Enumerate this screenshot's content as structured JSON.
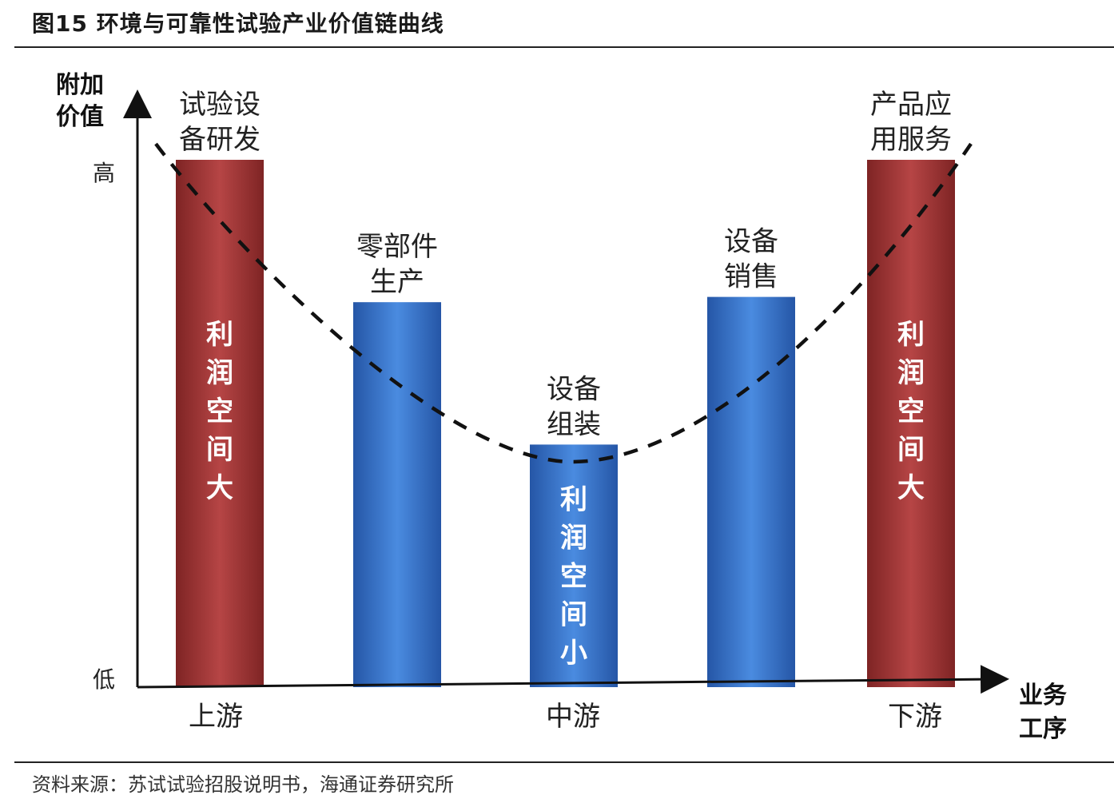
{
  "figure": {
    "title": "图15 环境与可靠性试验产业价值链曲线",
    "source": "资料来源：苏试试验招股说明书，海通证券研究所"
  },
  "chart_data": {
    "type": "bar",
    "title": "",
    "ylabel": "附加价值",
    "xlabel": "业务工序",
    "y_ticks": [
      "低",
      "高"
    ],
    "ylim": [
      0,
      100
    ],
    "stages": [
      "上游",
      "中游",
      "下游"
    ],
    "colors": {
      "high_value": "#a63a3a",
      "low_value": "#3a76c8",
      "curve": "#111111"
    },
    "categories": [
      "试验设备研发",
      "零部件生产",
      "设备组装",
      "设备销售",
      "产品应用服务"
    ],
    "category_lines": [
      [
        "试验设",
        "备研发"
      ],
      [
        "零部件",
        "生产"
      ],
      [
        "设备",
        "组装"
      ],
      [
        "设备",
        "销售"
      ],
      [
        "产品应",
        "用服务"
      ]
    ],
    "values": [
      100,
      73,
      46,
      74,
      100
    ],
    "bar_groups": [
      "high_value",
      "low_value",
      "low_value",
      "low_value",
      "high_value"
    ],
    "bar_text": [
      "利润空间大",
      "",
      "利润空间小",
      "",
      "利润空间大"
    ],
    "curve": {
      "style": "dashed",
      "shape": "U"
    }
  }
}
